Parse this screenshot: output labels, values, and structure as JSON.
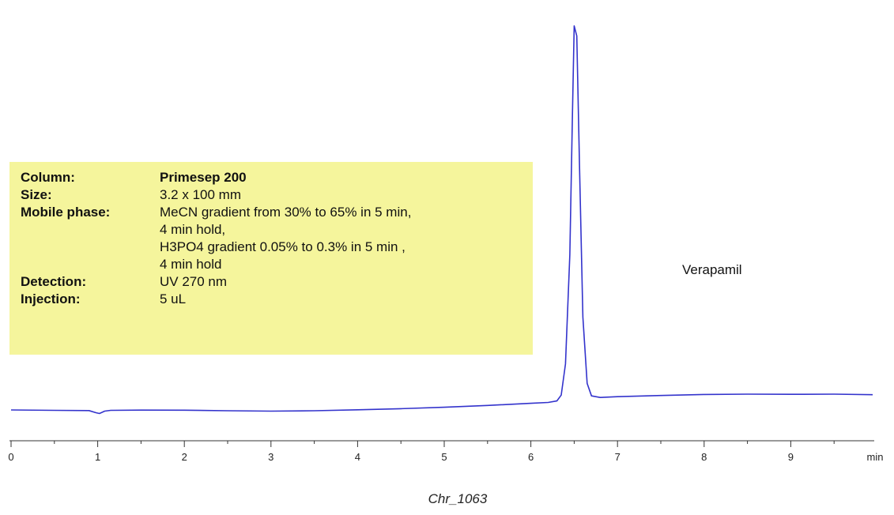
{
  "chart_data": {
    "type": "line",
    "x_unit_label": "min",
    "xlim": [
      0,
      10
    ],
    "x_ticks": [
      0,
      1,
      2,
      3,
      4,
      5,
      6,
      7,
      8,
      9
    ],
    "series": [
      {
        "color": "#3333cc",
        "points": [
          [
            0,
            1.0
          ],
          [
            0.5,
            0.5
          ],
          [
            0.9,
            0.2
          ],
          [
            0.98,
            -2.5
          ],
          [
            1.02,
            -3.5
          ],
          [
            1.08,
            -0.5
          ],
          [
            1.15,
            0.5
          ],
          [
            1.5,
            0.8
          ],
          [
            2,
            0.7
          ],
          [
            2.5,
            0.0
          ],
          [
            3,
            -0.5
          ],
          [
            3.5,
            0.0
          ],
          [
            4,
            1.2
          ],
          [
            4.5,
            2.6
          ],
          [
            5,
            4.5
          ],
          [
            5.5,
            6.8
          ],
          [
            6,
            9.5
          ],
          [
            6.2,
            10.6
          ],
          [
            6.3,
            12.5
          ],
          [
            6.35,
            20
          ],
          [
            6.4,
            60
          ],
          [
            6.45,
            200
          ],
          [
            6.48,
            380
          ],
          [
            6.5,
            493
          ],
          [
            6.53,
            480
          ],
          [
            6.56,
            320
          ],
          [
            6.6,
            120
          ],
          [
            6.65,
            35
          ],
          [
            6.7,
            19
          ],
          [
            6.8,
            17
          ],
          [
            7,
            18.0
          ],
          [
            7.5,
            19.5
          ],
          [
            8,
            20.8
          ],
          [
            8.5,
            21.2
          ],
          [
            9,
            21.0
          ],
          [
            9.5,
            21.2
          ],
          [
            10,
            20.5
          ]
        ]
      }
    ],
    "ylim": [
      -12,
      500
    ],
    "annotations": [
      {
        "text": "Verapamil",
        "x": 8.0,
        "y": 180
      }
    ]
  },
  "conditions": {
    "column_key": "Column:",
    "column_val": "Primesep 200",
    "size_key": "Size:",
    "size_val": "3.2 x 100 mm",
    "mobile_key": "Mobile phase:",
    "mobile_l1": "MeCN gradient from 30% to 65% in 5 min,",
    "mobile_l2": "4 min hold,",
    "mobile_l3": "H3PO4 gradient 0.05% to 0.3% in 5 min ,",
    "mobile_l4": "4 min hold",
    "detection_key": "Detection:",
    "detection_val": "UV 270 nm",
    "injection_key": "Injection:",
    "injection_val": "5 uL"
  },
  "caption": "Chr_1063",
  "colors": {
    "trace": "#3333cc",
    "box": "#f5f59c"
  }
}
